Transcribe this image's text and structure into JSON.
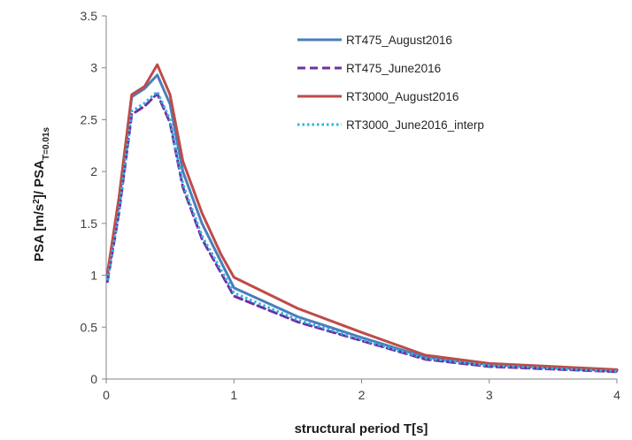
{
  "chart_data": {
    "type": "line",
    "xlabel": "structural period T[s]",
    "ylabel": {
      "prefix": "PSA [m/s",
      "sup": "2",
      "middle": "]/ PSA",
      "sub": "T=0.01s"
    },
    "xlim": [
      0,
      4
    ],
    "ylim": [
      0,
      3.5
    ],
    "xticks": [
      "0",
      "1",
      "2",
      "3",
      "4"
    ],
    "yticks": [
      "0",
      "0.5",
      "1",
      "1.5",
      "2",
      "2.5",
      "3",
      "3.5"
    ],
    "grid": false,
    "legend_position": "top-right",
    "series": [
      {
        "name": "RT475_August2016",
        "color": "#4a7ebb",
        "style": "solid",
        "points": [
          [
            0.01,
            1.0
          ],
          [
            0.1,
            1.7
          ],
          [
            0.2,
            2.72
          ],
          [
            0.3,
            2.8
          ],
          [
            0.4,
            2.93
          ],
          [
            0.5,
            2.65
          ],
          [
            0.6,
            2.0
          ],
          [
            0.75,
            1.5
          ],
          [
            1.0,
            0.88
          ],
          [
            1.5,
            0.6
          ],
          [
            2.0,
            0.4
          ],
          [
            2.5,
            0.21
          ],
          [
            3.0,
            0.14
          ],
          [
            4.0,
            0.08
          ]
        ]
      },
      {
        "name": "RT475_June2016",
        "color": "#7030a0",
        "style": "dashed",
        "points": [
          [
            0.01,
            0.94
          ],
          [
            0.1,
            1.6
          ],
          [
            0.2,
            2.55
          ],
          [
            0.3,
            2.63
          ],
          [
            0.4,
            2.75
          ],
          [
            0.5,
            2.47
          ],
          [
            0.6,
            1.85
          ],
          [
            0.75,
            1.35
          ],
          [
            1.0,
            0.8
          ],
          [
            1.5,
            0.55
          ],
          [
            2.0,
            0.37
          ],
          [
            2.5,
            0.19
          ],
          [
            3.0,
            0.12
          ],
          [
            4.0,
            0.07
          ]
        ]
      },
      {
        "name": "RT3000_August2016",
        "color": "#be4b48",
        "style": "solid",
        "points": [
          [
            0.01,
            1.02
          ],
          [
            0.1,
            1.75
          ],
          [
            0.2,
            2.74
          ],
          [
            0.3,
            2.82
          ],
          [
            0.4,
            3.03
          ],
          [
            0.5,
            2.74
          ],
          [
            0.6,
            2.1
          ],
          [
            0.75,
            1.6
          ],
          [
            0.9,
            1.2
          ],
          [
            1.0,
            0.98
          ],
          [
            1.5,
            0.68
          ],
          [
            2.0,
            0.45
          ],
          [
            2.5,
            0.23
          ],
          [
            3.0,
            0.15
          ],
          [
            4.0,
            0.09
          ]
        ]
      },
      {
        "name": "RT3000_June2016_interp",
        "color": "#2ab4e6",
        "style": "dotted",
        "points": [
          [
            0.01,
            0.95
          ],
          [
            0.1,
            1.62
          ],
          [
            0.2,
            2.58
          ],
          [
            0.3,
            2.66
          ],
          [
            0.4,
            2.77
          ],
          [
            0.5,
            2.5
          ],
          [
            0.6,
            1.88
          ],
          [
            0.75,
            1.38
          ],
          [
            1.0,
            0.83
          ],
          [
            1.5,
            0.57
          ],
          [
            2.0,
            0.38
          ],
          [
            2.5,
            0.2
          ],
          [
            3.0,
            0.13
          ],
          [
            4.0,
            0.075
          ]
        ]
      }
    ]
  }
}
